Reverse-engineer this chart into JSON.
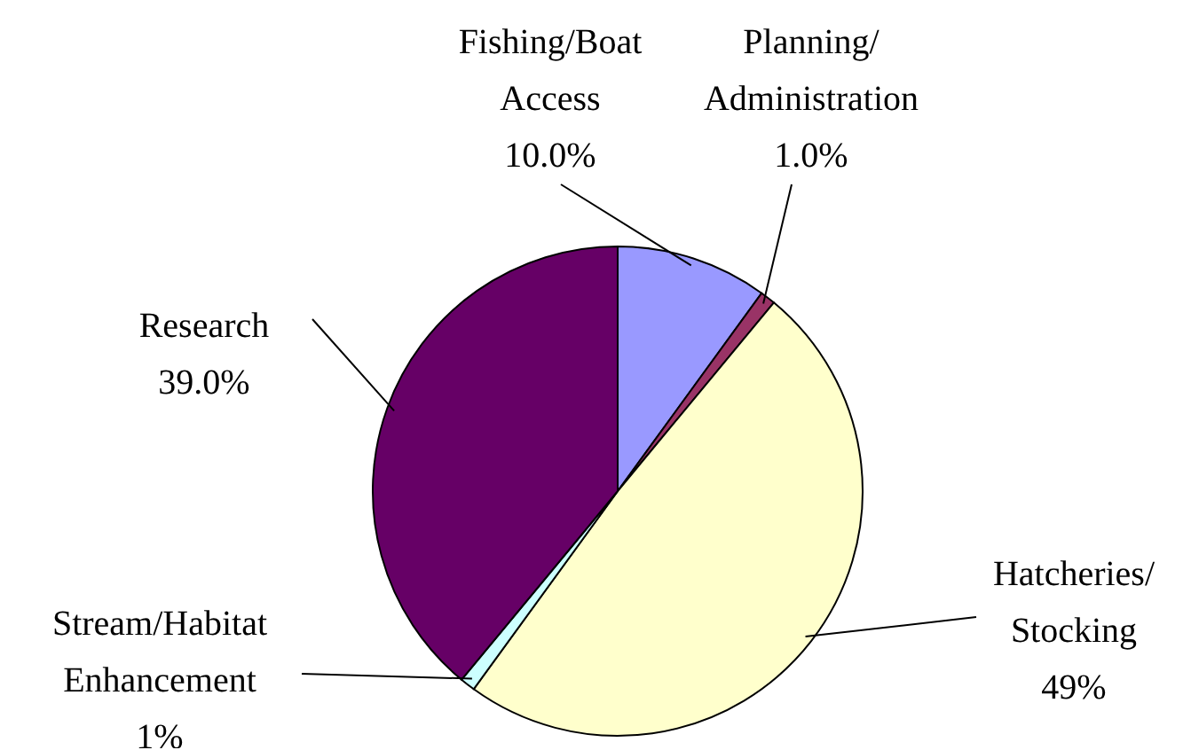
{
  "chart_data": {
    "type": "pie",
    "categories": [
      "Fishing/Boat Access",
      "Planning/Administration",
      "Hatcheries/Stocking",
      "Stream/Habitat Enhancement",
      "Research"
    ],
    "values": [
      10,
      1,
      49,
      1,
      39
    ],
    "value_labels": [
      "10.0%",
      "1.0%",
      "49%",
      "1%",
      "39.0%"
    ],
    "colors": [
      "#9999ff",
      "#993366",
      "#ffffcc",
      "#ccffff",
      "#660066"
    ]
  }
}
